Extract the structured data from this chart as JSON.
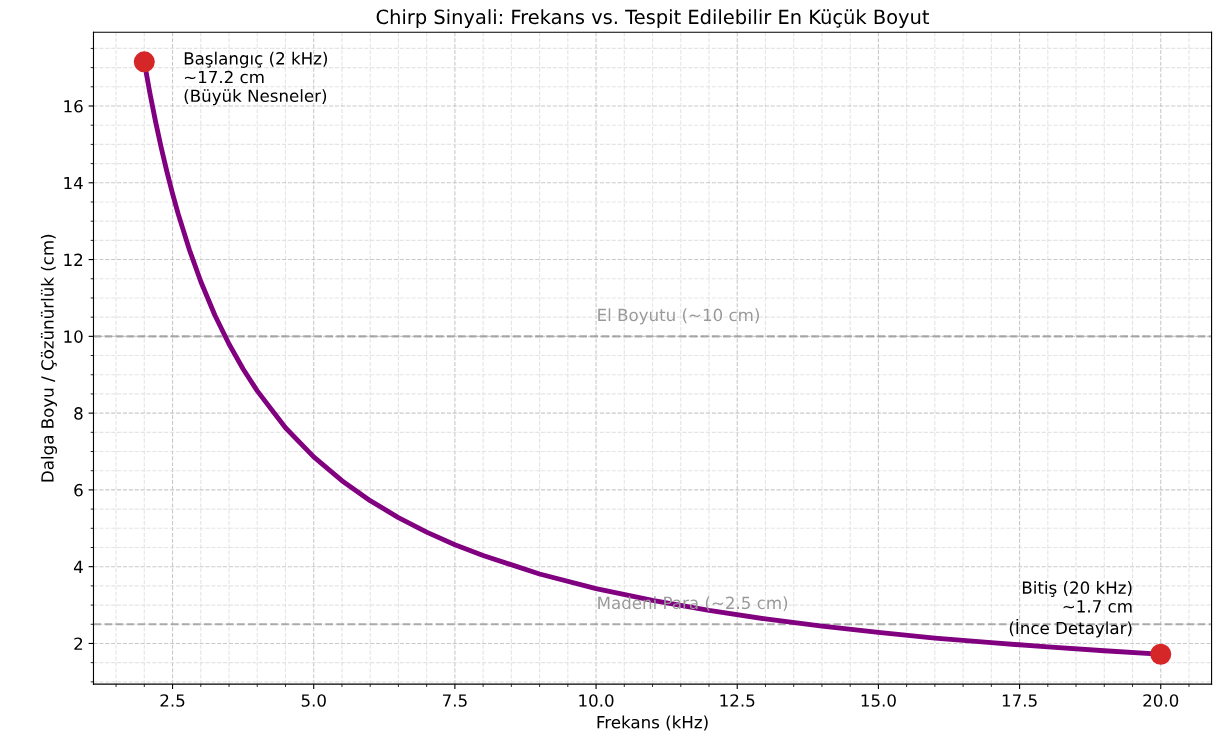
{
  "chart_data": {
    "type": "line",
    "title": "Chirp Sinyali: Frekans vs. Tespit Edilebilir En Küçük Boyut",
    "xlabel": "Frekans (kHz)",
    "ylabel": "Dalga Boyu / Çözünürlük (cm)",
    "series": [
      {
        "type": "line",
        "color": "#800080",
        "marker": "none",
        "x": [
          2,
          2.1,
          2.2,
          2.3,
          2.4,
          2.5,
          2.6,
          2.8,
          3,
          3.25,
          3.5,
          3.75,
          4,
          4.5,
          5,
          5.5,
          6,
          6.5,
          7,
          7.5,
          8,
          9,
          10,
          11,
          12,
          13,
          14,
          15,
          16,
          17,
          18,
          19,
          20
        ],
        "values": [
          17.15,
          16.33,
          15.59,
          14.91,
          14.29,
          13.72,
          13.19,
          12.25,
          11.43,
          10.55,
          9.8,
          9.15,
          8.58,
          7.62,
          6.86,
          6.24,
          5.72,
          5.28,
          4.9,
          4.57,
          4.29,
          3.81,
          3.43,
          3.12,
          2.86,
          2.64,
          2.45,
          2.29,
          2.14,
          2.02,
          1.91,
          1.81,
          1.72
        ]
      },
      {
        "type": "scatter",
        "color": "#d62728",
        "marker": "circle",
        "x": [
          2,
          20
        ],
        "values": [
          17.15,
          1.72
        ]
      }
    ],
    "xlim": [
      1.1,
      20.9
    ],
    "ylim": [
      0.94,
      17.92
    ],
    "xticks": [
      2.5,
      {
        "value": 5,
        "label": "5.0"
      },
      7.5,
      {
        "value": 10,
        "label": "10.0"
      },
      12.5,
      {
        "value": 15,
        "label": "15.0"
      },
      17.5,
      {
        "value": 20,
        "label": "20.0"
      }
    ],
    "yticks": [
      2,
      4,
      6,
      8,
      10,
      12,
      14,
      16
    ],
    "grid": true,
    "legend": false,
    "ref_lines": [
      {
        "axis": "y",
        "value": 10,
        "label": "El Boyutu (~10 cm)",
        "color": "#999999",
        "line_style": "dashed"
      },
      {
        "axis": "y",
        "value": 2.5,
        "label": "Madeni Para (~2.5 cm)",
        "color": "#999999",
        "line_style": "dashed"
      }
    ],
    "annotations": [
      {
        "text": "Başlangıç (2 kHz)\n~17.2 cm\n(Büyük Nesneler)",
        "x": 2,
        "y": 17.15
      },
      {
        "text": "Bitiş (20 kHz)\n~1.7 cm\n(İnce Detaylar)",
        "x": 20,
        "y": 1.72
      }
    ]
  }
}
